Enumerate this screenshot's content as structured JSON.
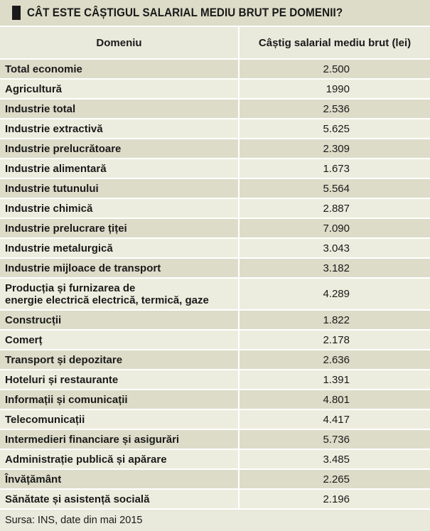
{
  "title": "CÂT ESTE CÂȘTIGUL SALARIAL MEDIU BRUT PE DOMENII?",
  "table": {
    "headers": [
      "Domeniu",
      "Câștig salarial mediu brut (lei)"
    ],
    "rows": [
      {
        "domain": "Total economie",
        "value": "2.500"
      },
      {
        "domain": "Agricultură",
        "value": "1990"
      },
      {
        "domain": "Industrie total",
        "value": "2.536"
      },
      {
        "domain": "Industrie extractivă",
        "value": "5.625"
      },
      {
        "domain": "Industrie prelucrătoare",
        "value": "2.309"
      },
      {
        "domain": "Industrie alimentară",
        "value": "1.673"
      },
      {
        "domain": "Industrie tutunului",
        "value": "5.564"
      },
      {
        "domain": "Industrie chimică",
        "value": "2.887"
      },
      {
        "domain": "Industrie prelucrare țiței",
        "value": "7.090"
      },
      {
        "domain": "Industrie metalurgică",
        "value": "3.043"
      },
      {
        "domain": "Industrie mijloace de transport",
        "value": "3.182"
      },
      {
        "domain": "Producția și furnizarea de\nenergie electrică electrică, termică, gaze",
        "value": "4.289"
      },
      {
        "domain": "Construcții",
        "value": "1.822"
      },
      {
        "domain": "Comerț",
        "value": "2.178"
      },
      {
        "domain": "Transport și depozitare",
        "value": "2.636"
      },
      {
        "domain": "Hoteluri și restaurante",
        "value": "1.391"
      },
      {
        "domain": "Informații și comunicații",
        "value": "4.801"
      },
      {
        "domain": "Telecomunicații",
        "value": "4.417"
      },
      {
        "domain": "Intermedieri financiare și asigurări",
        "value": "5.736"
      },
      {
        "domain": "Administrație publică și apărare",
        "value": "3.485"
      },
      {
        "domain": "Învățământ",
        "value": "2.265"
      },
      {
        "domain": "Sănătate și asistență socială",
        "value": "2.196"
      }
    ]
  },
  "source": "Sursa: INS, date din mai 2015"
}
